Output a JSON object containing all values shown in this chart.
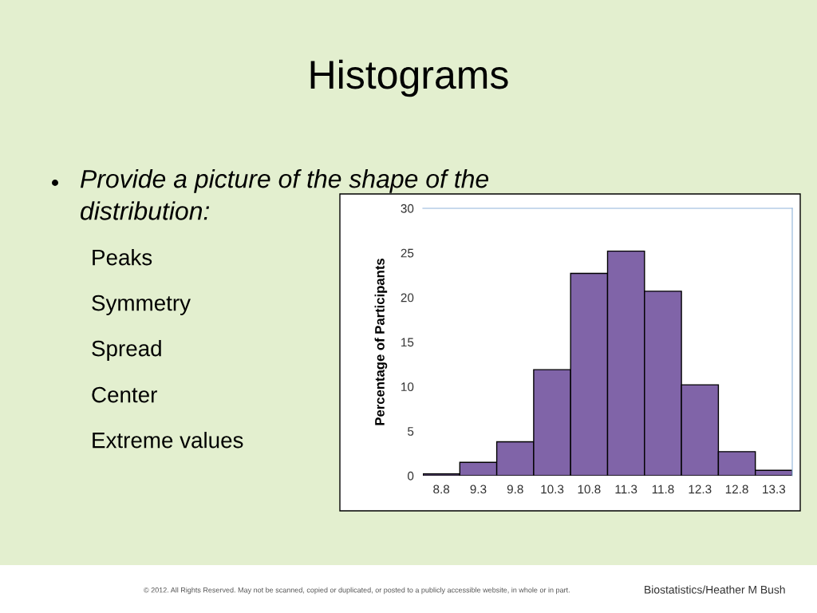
{
  "chart_data": {
    "type": "bar",
    "title": "Histograms",
    "ylabel": "Percentage of Participants",
    "categories": [
      "8.8",
      "9.3",
      "9.8",
      "10.3",
      "10.8",
      "11.3",
      "11.8",
      "12.3",
      "12.8",
      "13.3"
    ],
    "values": [
      0.2,
      1.5,
      3.8,
      11.9,
      22.7,
      25.2,
      20.7,
      10.2,
      2.7,
      0.6
    ],
    "color": "#8064a8",
    "ylim": [
      0,
      30
    ],
    "yticks": [
      0,
      5,
      10,
      15,
      20,
      25,
      30
    ],
    "grid": false,
    "annotations": [
      "Provide a picture of the shape of the\ndistribution:",
      "Peaks",
      "Symmetry",
      "Spread",
      "Center",
      "Extreme values",
      "© 2012. All Rights Reserved. May not be scanned, copied or duplicated, or posted to a publicly accessible website, in whole or in part.",
      "Biostatistics/Heather M Bush"
    ]
  }
}
